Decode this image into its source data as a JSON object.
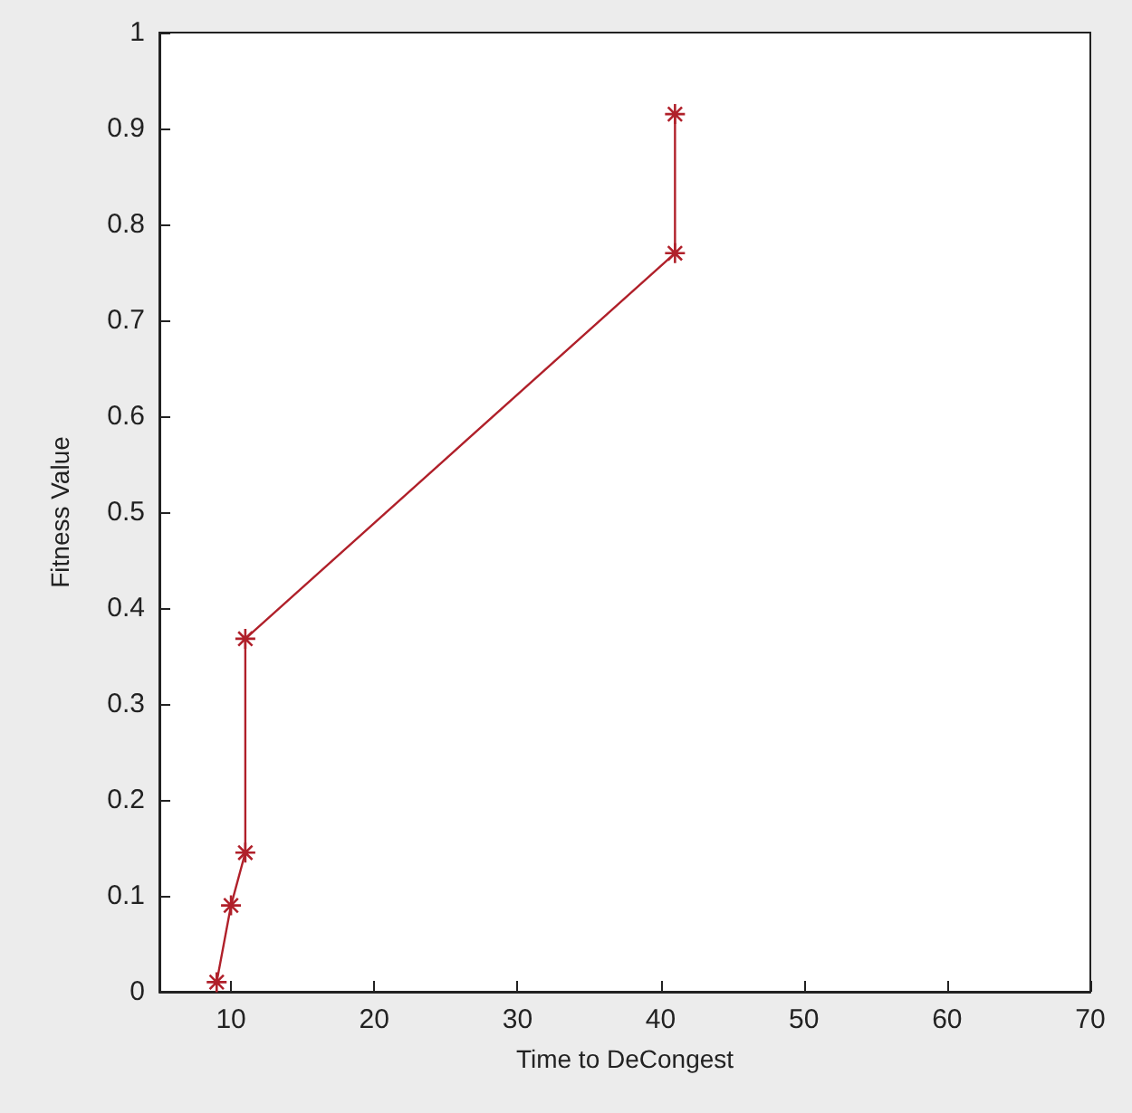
{
  "chart_data": {
    "type": "line",
    "xlabel": "Time to DeCongest",
    "ylabel": "Fitness Value",
    "series": [
      {
        "color": "#b0202a",
        "x": [
          9,
          10,
          11,
          11,
          41,
          41
        ],
        "values": [
          0.01,
          0.09,
          0.145,
          0.368,
          0.77,
          0.915
        ]
      }
    ],
    "xlim": [
      5,
      70
    ],
    "xticks": [
      10,
      20,
      30,
      40,
      50,
      60,
      70
    ],
    "ylim": [
      0,
      1
    ],
    "yticks": [
      0,
      0.1,
      0.2,
      0.3,
      0.4,
      0.5,
      0.6,
      0.7,
      0.8,
      0.9,
      1
    ],
    "grid": false,
    "marker": "cross",
    "line_style": "solid"
  }
}
